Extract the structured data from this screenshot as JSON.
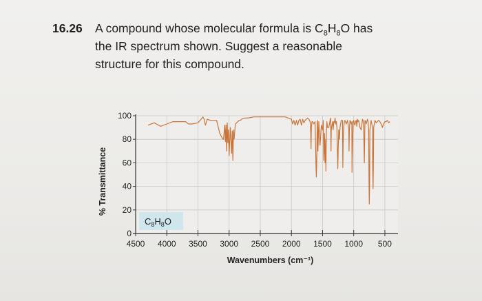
{
  "problem": {
    "number": "16.26",
    "line1_prefix": "A compound whose molecular formula is C",
    "line1_sub1": "8",
    "line1_mid": "H",
    "line1_sub2": "8",
    "line1_suffix": "O has",
    "line2": "the IR spectrum shown. Suggest a reasonable",
    "line3": "structure for this compound."
  },
  "chart_data": {
    "type": "line",
    "title": "",
    "xlabel": "Wavenumbers (cm⁻¹)",
    "ylabel": "% Transmittance",
    "xlim": [
      4500,
      400
    ],
    "ylim": [
      0,
      100
    ],
    "x_ticks": [
      "4500",
      "4000",
      "3500",
      "3000",
      "2500",
      "2000",
      "1500",
      "1000",
      "500"
    ],
    "y_ticks": [
      "0",
      "20",
      "40",
      "60",
      "80",
      "100"
    ],
    "grid": true,
    "line_color": "#c8753a",
    "legend_box": {
      "text_main": "C",
      "sub1": "8",
      "mid": "H",
      "sub2": "8",
      "end": "O",
      "fill": "#cfe6ec"
    },
    "series": [
      {
        "x": [
          4300,
          4200,
          4100,
          4000,
          3900,
          3800,
          3700,
          3650,
          3600,
          3500,
          3450,
          3420,
          3400,
          3380,
          3350,
          3300,
          3250,
          3200,
          3150,
          3100,
          3090,
          3070,
          3060,
          3050,
          3040,
          3030,
          3020,
          3010,
          3000,
          2980,
          2960,
          2950,
          2940,
          2930,
          2920,
          2900,
          2880,
          2860,
          2840,
          2820,
          2800,
          2750,
          2700,
          2600,
          2500,
          2400,
          2300,
          2200,
          2100,
          2050,
          2000,
          1980,
          1960,
          1940,
          1920,
          1900,
          1880,
          1860,
          1840,
          1820,
          1800,
          1780,
          1760,
          1740,
          1720,
          1700,
          1690,
          1685,
          1680,
          1670,
          1660,
          1640,
          1620,
          1605,
          1600,
          1595,
          1585,
          1580,
          1575,
          1560,
          1540,
          1520,
          1500,
          1490,
          1480,
          1470,
          1460,
          1450,
          1446,
          1440,
          1430,
          1420,
          1400,
          1380,
          1370,
          1365,
          1360,
          1350,
          1340,
          1330,
          1320,
          1310,
          1300,
          1290,
          1280,
          1270,
          1265,
          1260,
          1255,
          1250,
          1240,
          1230,
          1220,
          1200,
          1180,
          1175,
          1170,
          1160,
          1150,
          1140,
          1120,
          1100,
          1080,
          1075,
          1070,
          1060,
          1050,
          1040,
          1030,
          1028,
          1025,
          1020,
          1010,
          1000,
          990,
          980,
          970,
          960,
          950,
          940,
          930,
          920,
          910,
          900,
          880,
          860,
          850,
          840,
          830,
          820,
          810,
          800,
          790,
          780,
          770,
          760,
          755,
          750,
          745,
          740,
          720,
          700,
          695,
          690,
          685,
          680,
          660,
          640,
          620,
          600,
          580,
          560,
          550,
          540,
          520,
          500,
          480,
          460,
          440,
          420
        ],
        "y": [
          92,
          94,
          91,
          93,
          95,
          95,
          95,
          93,
          93,
          94,
          97,
          99,
          97,
          92,
          97,
          96,
          96,
          96,
          85,
          80,
          80,
          92,
          78,
          92,
          70,
          94,
          77,
          88,
          66,
          90,
          68,
          87,
          62,
          88,
          80,
          93,
          94,
          95,
          96,
          96,
          97,
          98,
          98,
          99,
          99,
          99,
          99,
          99,
          99,
          98,
          97,
          93,
          96,
          92,
          96,
          92,
          96,
          97,
          92,
          97,
          94,
          96,
          97,
          98,
          97,
          95,
          86,
          72,
          90,
          95,
          95,
          93,
          95,
          55,
          48,
          58,
          94,
          96,
          70,
          95,
          75,
          92,
          88,
          96,
          62,
          85,
          60,
          80,
          53,
          85,
          95,
          90,
          90,
          96,
          98,
          70,
          88,
          92,
          95,
          88,
          95,
          94,
          98,
          93,
          95,
          90,
          77,
          65,
          55,
          70,
          88,
          80,
          90,
          96,
          96,
          56,
          76,
          90,
          95,
          96,
          93,
          96,
          89,
          70,
          88,
          96,
          95,
          93,
          95,
          52,
          62,
          72,
          95,
          96,
          93,
          92,
          95,
          96,
          91,
          97,
          95,
          96,
          93,
          90,
          88,
          97,
          96,
          88,
          60,
          96,
          95,
          93,
          95,
          97,
          95,
          88,
          45,
          25,
          42,
          88,
          96,
          90,
          55,
          38,
          55,
          90,
          96,
          94,
          95,
          96,
          95,
          93,
          92,
          90,
          93,
          95,
          95,
          96,
          94,
          95
        ]
      }
    ]
  }
}
